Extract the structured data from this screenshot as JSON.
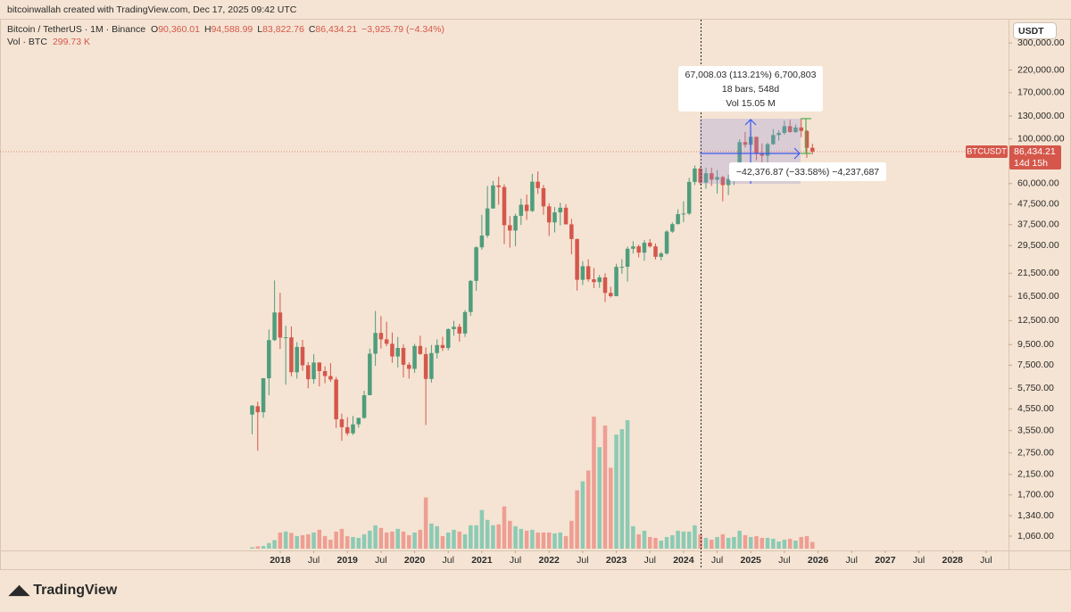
{
  "header": {
    "caption": "bitcoinwallah created with TradingView.com, Dec 17, 2025 09:42 UTC",
    "symbol": "Bitcoin / TetherUS · 1M · Binance",
    "ohlc": [
      {
        "key": "O",
        "value": "90,360.01"
      },
      {
        "key": "H",
        "value": "94,588.99"
      },
      {
        "key": "L",
        "value": "83,822.76"
      },
      {
        "key": "C",
        "value": "86,434.21"
      }
    ],
    "change": "−3,925.79 (−4.34%)",
    "volume_label": "Vol · BTC",
    "volume_value": "299.73 K"
  },
  "price_axis": {
    "currency": "USDT",
    "tag": "BTCUSDT",
    "price": "86,434.21",
    "countdown": "14d 15h"
  },
  "measure": {
    "line1": "67,008.03 (113.21%) 6,700,803",
    "line2": "18 bars, 548d",
    "line3": "Vol 15.05 M",
    "drawdown": "−42,376.87 (−33.58%) −4,237,687"
  },
  "footer": {
    "brand": "TradingView"
  },
  "chart_data": {
    "type": "candlestick",
    "log": true,
    "colors": {
      "up": "#4f9d7c",
      "down": "#d5574b",
      "volume_up": "#8ccab4",
      "volume_down": "#ee9e93"
    },
    "x": [
      "2017-08",
      "2017-09",
      "2017-10",
      "2017-11",
      "2017-12",
      "2018-01",
      "2018-02",
      "2018-03",
      "2018-04",
      "2018-05",
      "2018-06",
      "2018-07",
      "2018-08",
      "2018-09",
      "2018-10",
      "2018-11",
      "2018-12",
      "2019-01",
      "2019-02",
      "2019-03",
      "2019-04",
      "2019-05",
      "2019-06",
      "2019-07",
      "2019-08",
      "2019-09",
      "2019-10",
      "2019-11",
      "2019-12",
      "2020-01",
      "2020-02",
      "2020-03",
      "2020-04",
      "2020-05",
      "2020-06",
      "2020-07",
      "2020-08",
      "2020-09",
      "2020-10",
      "2020-11",
      "2020-12",
      "2021-01",
      "2021-02",
      "2021-03",
      "2021-04",
      "2021-05",
      "2021-06",
      "2021-07",
      "2021-08",
      "2021-09",
      "2021-10",
      "2021-11",
      "2021-12",
      "2022-01",
      "2022-02",
      "2022-03",
      "2022-04",
      "2022-05",
      "2022-06",
      "2022-07",
      "2022-08",
      "2022-09",
      "2022-10",
      "2022-11",
      "2022-12",
      "2023-01",
      "2023-02",
      "2023-03",
      "2023-04",
      "2023-05",
      "2023-06",
      "2023-07",
      "2023-08",
      "2023-09",
      "2023-10",
      "2023-11",
      "2023-12",
      "2024-01",
      "2024-02",
      "2024-03",
      "2024-04",
      "2024-05",
      "2024-06",
      "2024-07",
      "2024-08",
      "2024-09",
      "2024-10",
      "2024-11",
      "2024-12",
      "2025-01",
      "2025-02",
      "2025-03",
      "2025-04",
      "2025-05",
      "2025-06",
      "2025-07",
      "2025-08",
      "2025-09",
      "2025-10",
      "2025-11",
      "2025-12"
    ],
    "open": [
      4261,
      4690,
      4378,
      6463,
      10000,
      13716,
      10285,
      10326,
      6922,
      9246,
      7500,
      6391,
      7735,
      7011,
      6626,
      6370,
      4041,
      3689,
      3441,
      3814,
      4103,
      5321,
      8555,
      10854,
      10085,
      9590,
      8290,
      9140,
      7540,
      7195,
      9350,
      8523,
      6412,
      8620,
      9448,
      9138,
      11335,
      11650,
      10777,
      13791,
      19695,
      28923,
      33092,
      45134,
      58740,
      57697,
      37254,
      35046,
      41462,
      47100,
      43820,
      61300,
      56951,
      46216,
      38466,
      43160,
      45510,
      37630,
      31801,
      19942,
      23297,
      20048,
      19423,
      20491,
      17165,
      16542,
      23125,
      23141,
      28465,
      29233,
      27210,
      30472,
      29232,
      25941,
      26963,
      34640,
      37723,
      42283,
      42580,
      61131,
      71280,
      60672,
      67540,
      62772,
      64628,
      58974,
      63328,
      70216,
      96408,
      93576,
      102429,
      84350,
      82550,
      94172,
      104591,
      107135,
      115764,
      108246,
      114049,
      109608,
      90360.01
    ],
    "high": [
      4745,
      4939,
      6470,
      11300,
      19798,
      17176,
      11786,
      11704,
      9759,
      10020,
      7775,
      8506,
      7750,
      7410,
      7680,
      6555,
      4312,
      4140,
      4198,
      4120,
      5600,
      9074,
      13970,
      13147,
      12325,
      10905,
      10370,
      9505,
      7750,
      9578,
      10500,
      9188,
      9460,
      10080,
      10380,
      11444,
      12468,
      12050,
      14100,
      19863,
      29300,
      41950,
      58352,
      61844,
      64854,
      59500,
      41330,
      42448,
      50500,
      52920,
      67000,
      69000,
      59054,
      47990,
      45821,
      48190,
      47444,
      40023,
      31986,
      24668,
      25211,
      22800,
      21085,
      21480,
      18387,
      23960,
      25250,
      29184,
      31000,
      29820,
      31431,
      31804,
      30244,
      27483,
      35198,
      38450,
      44700,
      48969,
      64000,
      73777,
      72797,
      71979,
      71997,
      70079,
      65660,
      66498,
      73620,
      99588,
      108353,
      109588,
      102500,
      95000,
      95758,
      111980,
      110530,
      123218,
      124474,
      117900,
      126199,
      110600,
      94588.99
    ],
    "low": [
      3400,
      2817,
      4110,
      5325,
      9900,
      9035,
      6000,
      6600,
      6430,
      7035,
      5755,
      6070,
      5880,
      6100,
      6200,
      3652,
      3156,
      3349,
      3373,
      3670,
      4067,
      5316,
      7444,
      9071,
      9320,
      7710,
      7300,
      6515,
      6435,
      6871,
      8450,
      3782,
      6150,
      8100,
      8833,
      8893,
      10525,
      9825,
      10370,
      13195,
      17572,
      28130,
      32296,
      44950,
      47044,
      30000,
      28805,
      29278,
      37332,
      39600,
      43283,
      53256,
      42000,
      32917,
      34322,
      37155,
      37578,
      26700,
      17622,
      18782,
      19520,
      18125,
      18190,
      15476,
      16256,
      16500,
      21351,
      19549,
      26942,
      25811,
      24800,
      28861,
      25166,
      24901,
      26538,
      34097,
      37615,
      38555,
      41884,
      59005,
      59191,
      56552,
      58402,
      53485,
      49000,
      52550,
      58946,
      66835,
      90500,
      89256,
      78258,
      76606,
      74509,
      93377,
      98200,
      105100,
      107350,
      107255,
      102000,
      80600,
      83822.76
    ],
    "close": [
      4724,
      4378,
      6463,
      10000,
      13716,
      10285,
      10326,
      6923,
      9246,
      7494,
      6391,
      7730,
      7011,
      6626,
      6371,
      4041,
      3689,
      3439,
      3811,
      4103,
      5320,
      8555,
      10854,
      10085,
      9590,
      8290,
      9140,
      7540,
      7195,
      9350,
      8523,
      6410,
      8620,
      9448,
      9138,
      11335,
      11650,
      10777,
      13791,
      19695,
      28923,
      33092,
      45135,
      58740,
      57694,
      37254,
      35045,
      41462,
      47100,
      43824,
      61299,
      56950,
      46216,
      38466,
      43160,
      45510,
      37630,
      31801,
      19942,
      23293,
      20050,
      19423,
      20490,
      17165,
      16542,
      23125,
      23141,
      28465,
      29233,
      27210,
      30472,
      29232,
      25940,
      26962,
      34639,
      37724,
      42283,
      42582,
      61130,
      71280,
      60672,
      67540,
      62772,
      64628,
      58974,
      63328,
      70215,
      96408,
      93576,
      102429,
      84350,
      82550,
      94172,
      104592,
      107135,
      115764,
      108246,
      114049,
      109608,
      90360,
      86434.21
    ],
    "volume": [
      60,
      100,
      120,
      250,
      380,
      720,
      760,
      700,
      560,
      600,
      640,
      720,
      840,
      560,
      400,
      760,
      880,
      560,
      520,
      480,
      640,
      800,
      1040,
      920,
      720,
      760,
      880,
      760,
      600,
      720,
      840,
      2280,
      1120,
      1000,
      560,
      720,
      840,
      760,
      640,
      1040,
      1040,
      1720,
      1280,
      1040,
      1080,
      1880,
      1240,
      1000,
      880,
      800,
      840,
      720,
      720,
      720,
      680,
      720,
      560,
      1240,
      2600,
      3000,
      3480,
      5880,
      4520,
      5480,
      3600,
      5080,
      5320,
      5720,
      1000,
      640,
      800,
      520,
      480,
      360,
      520,
      600,
      800,
      760,
      760,
      1040,
      640,
      480,
      400,
      520,
      640,
      480,
      520,
      800,
      600,
      520,
      560,
      480,
      480,
      440,
      320,
      400,
      440,
      360,
      520,
      560,
      299.73
    ],
    "xlim": [
      "2013-11",
      "2028-11"
    ],
    "xticks": [
      {
        "value": "2018-01",
        "label": "2018"
      },
      {
        "value": "2018-07",
        "label": "Jul"
      },
      {
        "value": "2019-01",
        "label": "2019"
      },
      {
        "value": "2019-07",
        "label": "Jul"
      },
      {
        "value": "2020-01",
        "label": "2020"
      },
      {
        "value": "2020-07",
        "label": "Jul"
      },
      {
        "value": "2021-01",
        "label": "2021"
      },
      {
        "value": "2021-07",
        "label": "Jul"
      },
      {
        "value": "2022-01",
        "label": "2022"
      },
      {
        "value": "2022-07",
        "label": "Jul"
      },
      {
        "value": "2023-01",
        "label": "2023"
      },
      {
        "value": "2023-07",
        "label": "Jul"
      },
      {
        "value": "2024-01",
        "label": "2024"
      },
      {
        "value": "2024-07",
        "label": "Jul"
      },
      {
        "value": "2025-01",
        "label": "2025"
      },
      {
        "value": "2025-07",
        "label": "Jul"
      },
      {
        "value": "2026-01",
        "label": "2026"
      },
      {
        "value": "2026-07",
        "label": "Jul"
      },
      {
        "value": "2027-01",
        "label": "2027"
      },
      {
        "value": "2027-07",
        "label": "Jul"
      },
      {
        "value": "2028-01",
        "label": "2028"
      },
      {
        "value": "2028-07",
        "label": "Jul"
      }
    ],
    "ylim": [
      900,
      400000
    ],
    "yticks": [
      {
        "value": 300000,
        "label": "300,000.00"
      },
      {
        "value": 220000,
        "label": "220,000.00"
      },
      {
        "value": 170000,
        "label": "170,000.00"
      },
      {
        "value": 130000,
        "label": "130,000.00"
      },
      {
        "value": 100000,
        "label": "100,000.00"
      },
      {
        "value": 60000,
        "label": "60,000.00"
      },
      {
        "value": 47500,
        "label": "47,500.00"
      },
      {
        "value": 37500,
        "label": "37,500.00"
      },
      {
        "value": 29500,
        "label": "29,500.00"
      },
      {
        "value": 21500,
        "label": "21,500.00"
      },
      {
        "value": 16500,
        "label": "16,500.00"
      },
      {
        "value": 12500,
        "label": "12,500.00"
      },
      {
        "value": 9500,
        "label": "9,500.00"
      },
      {
        "value": 7500,
        "label": "7,500.00"
      },
      {
        "value": 5750,
        "label": "5,750.00"
      },
      {
        "value": 4550,
        "label": "4,550.00"
      },
      {
        "value": 3550,
        "label": "3,550.00"
      },
      {
        "value": 2750,
        "label": "2,750.00"
      },
      {
        "value": 2150,
        "label": "2,150.00"
      },
      {
        "value": 1700,
        "label": "1,700.00"
      },
      {
        "value": 1340,
        "label": "1,340.00"
      },
      {
        "value": 1060,
        "label": "1,060.00"
      }
    ]
  }
}
